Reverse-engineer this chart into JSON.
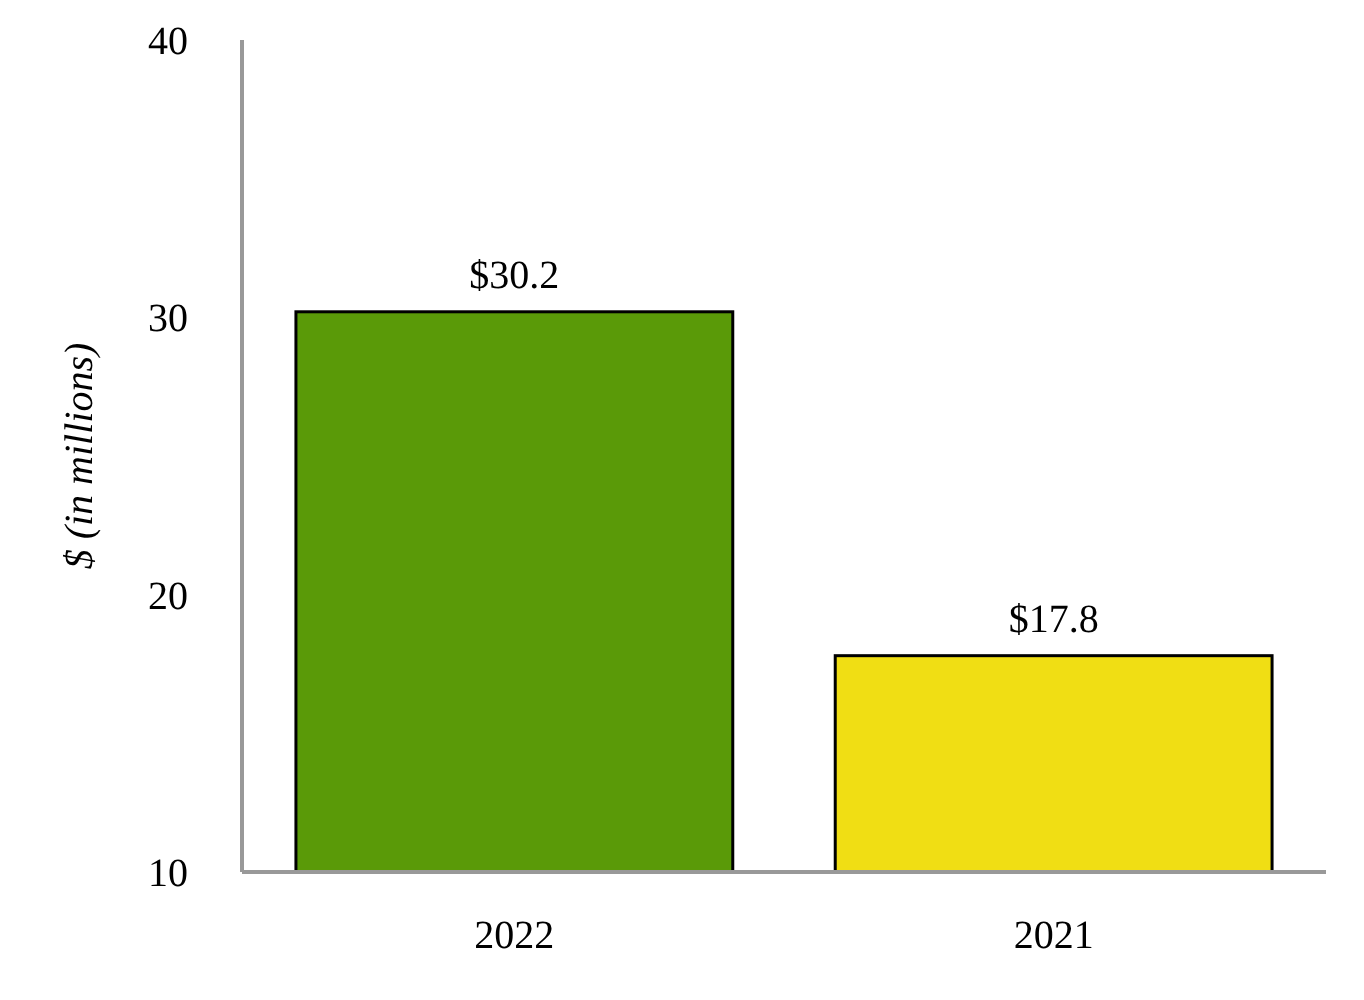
{
  "chart_data": {
    "type": "bar",
    "ylabel": "$ (in millions)",
    "categories": [
      "2022",
      "2021"
    ],
    "values": [
      30.2,
      17.8
    ],
    "colors": [
      "#5a9a08",
      "#f0de14"
    ],
    "value_labels": [
      "$30.2",
      "$17.8"
    ],
    "ylim": [
      10,
      40
    ],
    "yticks": [
      10,
      20,
      30,
      40
    ]
  }
}
